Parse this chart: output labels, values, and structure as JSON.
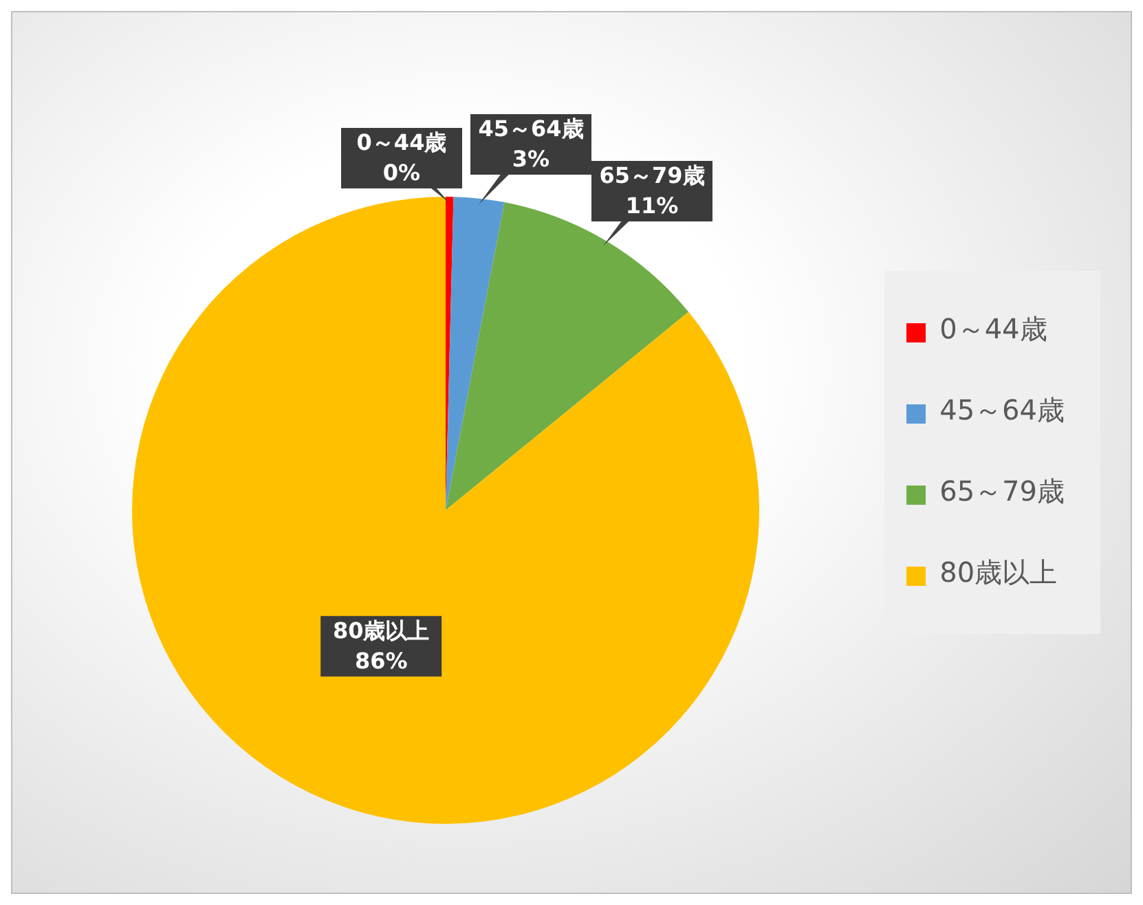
{
  "chart_data": {
    "type": "pie",
    "categories": [
      "0～44歳",
      "45～64歳",
      "65～79歳",
      "80歳以上"
    ],
    "values": [
      0.4,
      2.6,
      11.1,
      85.9
    ],
    "value_labels": [
      "0%",
      "3%",
      "11%",
      "86%"
    ],
    "colors": [
      "#ff0000",
      "#5b9bd5",
      "#70ad47",
      "#ffc000"
    ],
    "legend": "right"
  }
}
